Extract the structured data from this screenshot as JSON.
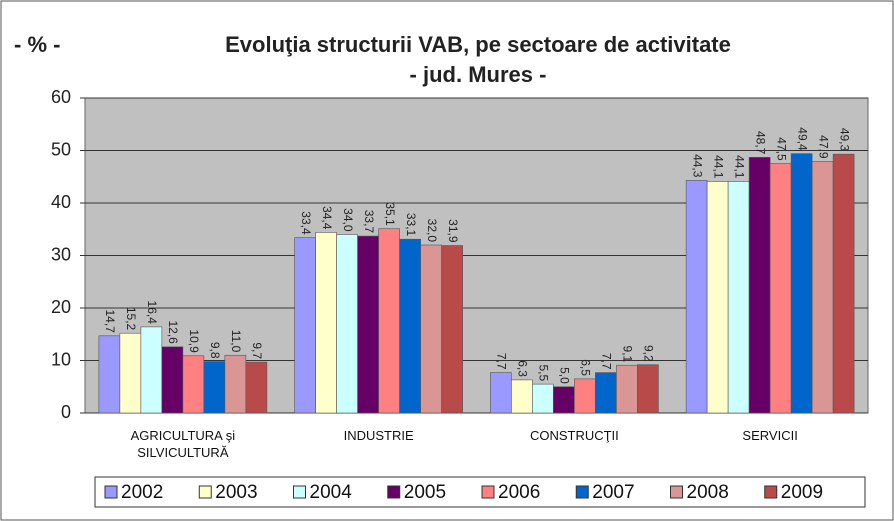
{
  "chart_data": {
    "type": "bar",
    "unit_label": "- % -",
    "title": "Evoluţia structurii VAB, pe sectoare de activitate",
    "subtitle": "- jud. Mures -",
    "categories": [
      "AGRICULTURA şi SILVICULTURĂ",
      "INDUSTRIE",
      "CONSTRUCŢII",
      "SERVICII"
    ],
    "ylim": [
      0,
      60
    ],
    "yticks": [
      0,
      10,
      20,
      30,
      40,
      50,
      60
    ],
    "grid": true,
    "legend": "bottom",
    "series": [
      {
        "name": "2002",
        "color": "#9999ff",
        "values": [
          14.7,
          33.4,
          7.7,
          44.3
        ],
        "value_labels": [
          "14,7",
          "33,4",
          "7,7",
          "44,3"
        ]
      },
      {
        "name": "2003",
        "color": "#ffffcc",
        "values": [
          15.2,
          34.4,
          6.3,
          44.1
        ],
        "value_labels": [
          "15,2",
          "34,4",
          "6,3",
          "44,1"
        ]
      },
      {
        "name": "2004",
        "color": "#ccffff",
        "values": [
          16.4,
          34.0,
          5.5,
          44.1
        ],
        "value_labels": [
          "16,4",
          "34,0",
          "5,5",
          "44,1"
        ]
      },
      {
        "name": "2005",
        "color": "#660066",
        "values": [
          12.6,
          33.7,
          5.0,
          48.7
        ],
        "value_labels": [
          "12,6",
          "33,7",
          "5,0",
          "48,7"
        ]
      },
      {
        "name": "2006",
        "color": "#ff8080",
        "values": [
          10.9,
          35.1,
          6.5,
          47.5
        ],
        "value_labels": [
          "10,9",
          "35,1",
          "6,5",
          "47,5"
        ]
      },
      {
        "name": "2007",
        "color": "#0066cc",
        "values": [
          9.8,
          33.1,
          7.7,
          49.4
        ],
        "value_labels": [
          "9,8",
          "33,1",
          "7,7",
          "49,4"
        ]
      },
      {
        "name": "2008",
        "color": "#d99694",
        "values": [
          11.0,
          32.0,
          9.1,
          47.9
        ],
        "value_labels": [
          "11,0",
          "32,0",
          "9,1",
          "47,9"
        ]
      },
      {
        "name": "2009",
        "color": "#b84a4a",
        "values": [
          9.7,
          31.9,
          9.2,
          49.3
        ],
        "value_labels": [
          "9,7",
          "31,9",
          "9,2",
          "49,3"
        ]
      }
    ]
  }
}
